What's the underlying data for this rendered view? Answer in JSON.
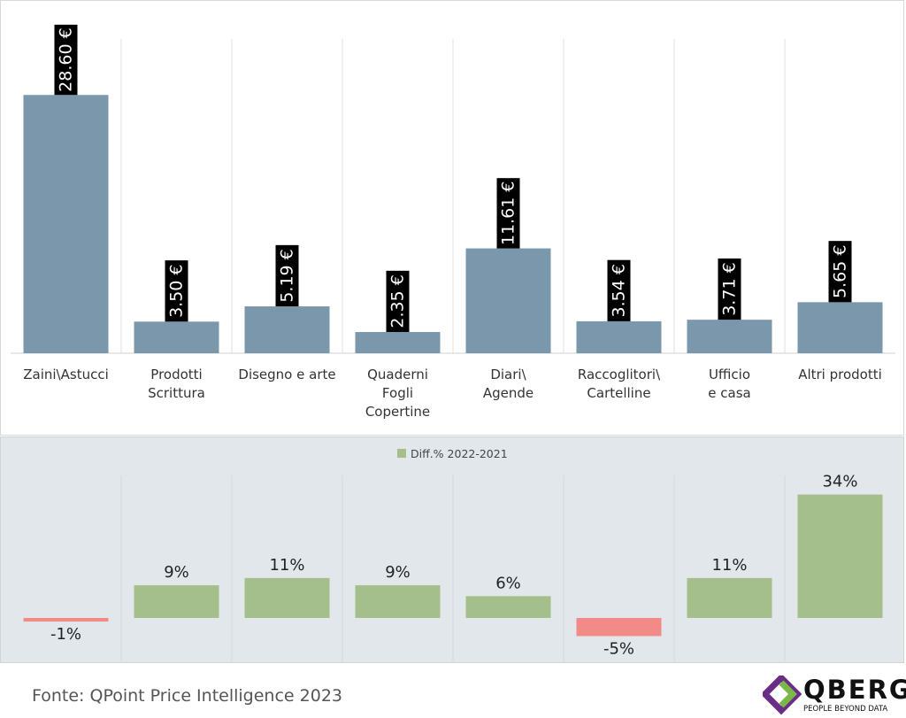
{
  "chart_data": [
    {
      "type": "bar",
      "categories": [
        [
          "Zaini\\Astucci"
        ],
        [
          "Prodotti",
          "Scrittura"
        ],
        [
          "Disegno e arte"
        ],
        [
          "Quaderni",
          "Fogli",
          "Copertine"
        ],
        [
          "Diari\\",
          "Agende"
        ],
        [
          "Raccoglitori\\",
          "Cartelline"
        ],
        [
          "Ufficio",
          "e casa"
        ],
        [
          "Altri prodotti"
        ]
      ],
      "values": [
        28.6,
        3.5,
        5.19,
        2.35,
        11.61,
        3.54,
        3.71,
        5.65
      ],
      "data_labels": [
        "28.60 €",
        "3.50 €",
        "5.19 €",
        "2.35 €",
        "11.61 €",
        "3.54 €",
        "3.71 €",
        "5.65 €"
      ],
      "ylim": [
        0,
        30
      ],
      "grid": "vertical separators",
      "colors": {
        "bar": "#7a97ab",
        "label_bg": "#000000",
        "label_text": "#ffffff"
      }
    },
    {
      "type": "bar",
      "categories": [
        "Zaini\\Astucci",
        "Prodotti Scrittura",
        "Disegno e arte",
        "Quaderni Fogli Copertine",
        "Diari\\ Agende",
        "Raccoglitori\\ Cartelline",
        "Ufficio e casa",
        "Altri prodotti"
      ],
      "series": [
        {
          "name": "Diff.% 2022-2021",
          "values": [
            -1,
            9,
            11,
            9,
            6,
            -5,
            11,
            34
          ]
        }
      ],
      "data_labels": [
        "-1%",
        "9%",
        "11%",
        "9%",
        "6%",
        "-5%",
        "11%",
        "34%"
      ],
      "ylim": [
        -5,
        34
      ],
      "legend": "top-center",
      "colors": {
        "positive": "#a5bf8c",
        "negative": "#f28b88",
        "background": "#e1e7ea"
      }
    }
  ],
  "footer": {
    "source": "Fonte: QPoint Price Intelligence 2023"
  },
  "logo": {
    "name": "QBERG",
    "tagline": "PEOPLE BEYOND DATA",
    "colors": {
      "purple": "#6b2d83",
      "green": "#7ab648"
    }
  }
}
